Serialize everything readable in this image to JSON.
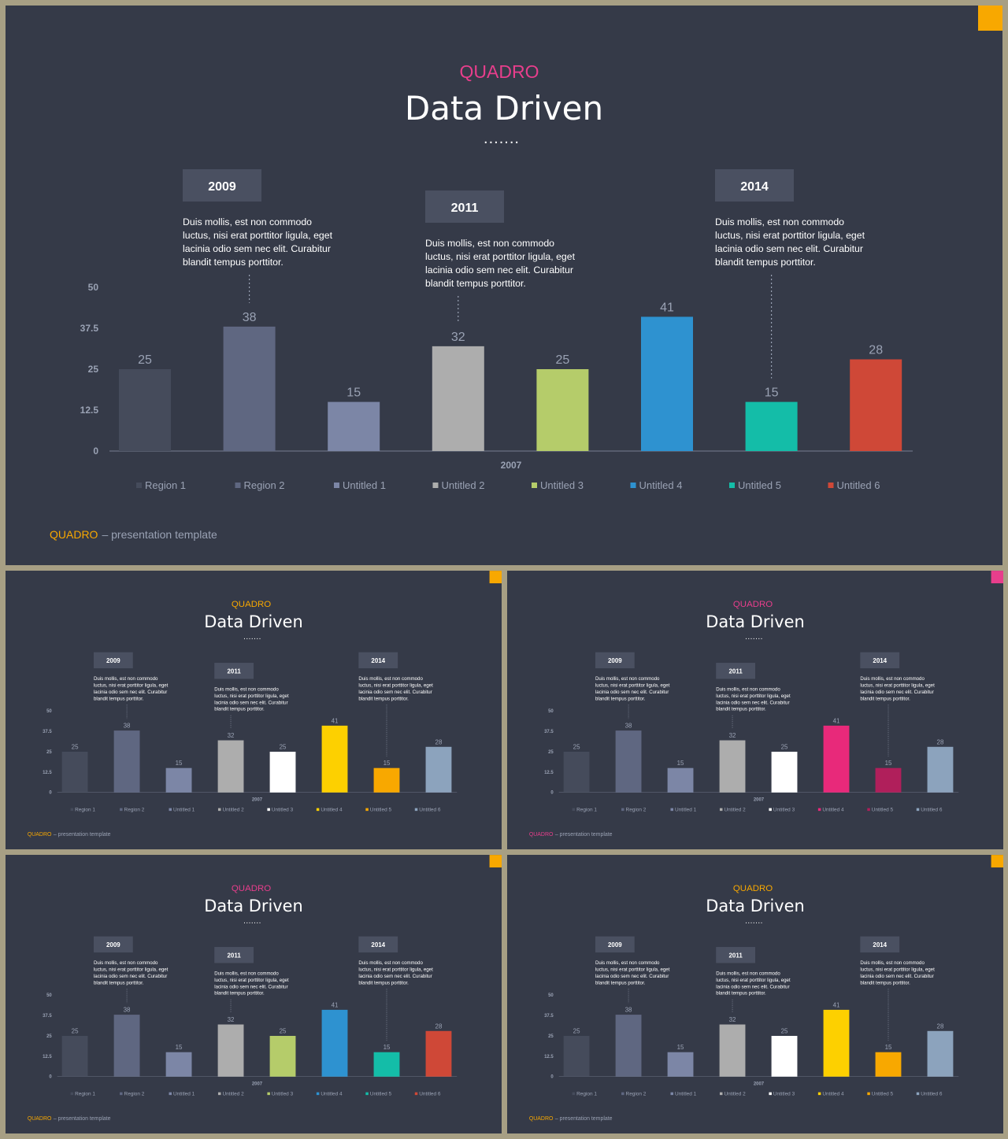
{
  "colors": {
    "frame": "#a79f84",
    "slide_bg": "#353a48",
    "text_light": "#ffffff",
    "text_muted": "#9aa2b4",
    "axis": "#6a7183",
    "label_box": "#4a5061",
    "accent_orange": "#f8a800",
    "accent_pink": "#e83e8c"
  },
  "slides": [
    {
      "brand": "QUADRO",
      "brand_color": "#e83e8c",
      "title": "Data Driven",
      "dots": ".......",
      "corner_color": "#f8a800",
      "footer_brand": "QUADRO",
      "footer_brand_color": "#f8a800",
      "footer_text": "– presentation template",
      "callouts": [
        {
          "year": "2009",
          "text": [
            "Duis mollis, est non commodo",
            "luctus, nisi erat porttitor ligula, eget",
            "lacinia odio sem nec elit. Curabitur",
            "blandit tempus porttitor."
          ],
          "bar": 1
        },
        {
          "year": "2011",
          "text": [
            "Duis mollis, est non commodo",
            "luctus, nisi erat porttitor ligula, eget",
            "lacinia odio sem nec elit. Curabitur",
            "blandit tempus porttitor."
          ],
          "bar": 3
        },
        {
          "year": "2014",
          "text": [
            "Duis mollis, est non commodo",
            "luctus, nisi erat porttitor ligula, eget",
            "lacinia odio sem nec elit. Curabitur",
            "blandit tempus porttitor."
          ],
          "bar": 6
        }
      ],
      "bar_colors": [
        "#454b5b",
        "#5f6781",
        "#7c86a6",
        "#adadad",
        "#b5cc6a",
        "#2e92d0",
        "#14bda8",
        "#cf4837"
      ]
    },
    {
      "brand": "QUADRO",
      "brand_color": "#f8a800",
      "title": "Data Driven",
      "dots": ".......",
      "corner_color": "#f8a800",
      "footer_brand": "QUADRO",
      "footer_brand_color": "#f8a800",
      "footer_text": "– presentation template",
      "callouts": [
        {
          "year": "2009",
          "text": [
            "Duis mollis, est non commodo",
            "luctus, nisi erat porttitor ligula, eget",
            "lacinia odio sem nec elit. Curabitur",
            "blandit tempus porttitor."
          ],
          "bar": 1
        },
        {
          "year": "2011",
          "text": [
            "Duis mollis, est non commodo",
            "luctus, nisi erat porttitor ligula, eget",
            "lacinia odio sem nec elit. Curabitur",
            "blandit tempus porttitor."
          ],
          "bar": 3
        },
        {
          "year": "2014",
          "text": [
            "Duis mollis, est non commodo",
            "luctus, nisi erat porttitor ligula, eget",
            "lacinia odio sem nec elit. Curabitur",
            "blandit tempus porttitor."
          ],
          "bar": 6
        }
      ],
      "bar_colors": [
        "#454b5b",
        "#5f6781",
        "#7c86a6",
        "#adadad",
        "#ffffff",
        "#fdd000",
        "#f8a800",
        "#8ca3bd"
      ]
    },
    {
      "brand": "QUADRO",
      "brand_color": "#e83e8c",
      "title": "Data Driven",
      "dots": ".......",
      "corner_color": "#e83e8c",
      "footer_brand": "QUADRO",
      "footer_brand_color": "#e83e8c",
      "footer_text": "– presentation template",
      "callouts": [
        {
          "year": "2009",
          "text": [
            "Duis mollis, est non commodo",
            "luctus, nisi erat porttitor ligula, eget",
            "lacinia odio sem nec elit. Curabitur",
            "blandit tempus porttitor."
          ],
          "bar": 1
        },
        {
          "year": "2011",
          "text": [
            "Duis mollis, est non commodo",
            "luctus, nisi erat porttitor ligula, eget",
            "lacinia odio sem nec elit. Curabitur",
            "blandit tempus porttitor."
          ],
          "bar": 3
        },
        {
          "year": "2014",
          "text": [
            "Duis mollis, est non commodo",
            "luctus, nisi erat porttitor ligula, eget",
            "lacinia odio sem nec elit. Curabitur",
            "blandit tempus porttitor."
          ],
          "bar": 6
        }
      ],
      "bar_colors": [
        "#454b5b",
        "#5f6781",
        "#7c86a6",
        "#adadad",
        "#ffffff",
        "#e8297a",
        "#b01f5b",
        "#8ca3bd"
      ]
    },
    {
      "brand": "QUADRO",
      "brand_color": "#e83e8c",
      "title": "Data Driven",
      "dots": ".......",
      "corner_color": "#f8a800",
      "footer_brand": "QUADRO",
      "footer_brand_color": "#f8a800",
      "footer_text": "– presentation template",
      "callouts": [
        {
          "year": "2009",
          "text": [
            "Duis mollis, est non commodo",
            "luctus, nisi erat porttitor ligula, eget",
            "lacinia odio sem nec elit. Curabitur",
            "blandit tempus porttitor."
          ],
          "bar": 1
        },
        {
          "year": "2011",
          "text": [
            "Duis mollis, est non commodo",
            "luctus, nisi erat porttitor ligula, eget",
            "lacinia odio sem nec elit. Curabitur",
            "blandit tempus porttitor."
          ],
          "bar": 3
        },
        {
          "year": "2014",
          "text": [
            "Duis mollis, est non commodo",
            "luctus, nisi erat porttitor ligula, eget",
            "lacinia odio sem nec elit. Curabitur",
            "blandit tempus porttitor."
          ],
          "bar": 6
        }
      ],
      "bar_colors": [
        "#454b5b",
        "#5f6781",
        "#7c86a6",
        "#adadad",
        "#b5cc6a",
        "#2e92d0",
        "#14bda8",
        "#cf4837"
      ]
    },
    {
      "brand": "QUADRO",
      "brand_color": "#f8a800",
      "title": "Data Driven",
      "dots": ".......",
      "corner_color": "#f8a800",
      "footer_brand": "QUADRO",
      "footer_brand_color": "#f8a800",
      "footer_text": "– presentation template",
      "callouts": [
        {
          "year": "2009",
          "text": [
            "Duis mollis, est non commodo",
            "luctus, nisi erat porttitor ligula, eget",
            "lacinia odio sem nec elit. Curabitur",
            "blandit tempus porttitor."
          ],
          "bar": 1
        },
        {
          "year": "2011",
          "text": [
            "Duis mollis, est non commodo",
            "luctus, nisi erat porttitor ligula, eget",
            "lacinia odio sem nec elit. Curabitur",
            "blandit tempus porttitor."
          ],
          "bar": 3
        },
        {
          "year": "2014",
          "text": [
            "Duis mollis, est non commodo",
            "luctus, nisi erat porttitor ligula, eget",
            "lacinia odio sem nec elit. Curabitur",
            "blandit tempus porttitor."
          ],
          "bar": 6
        }
      ],
      "bar_colors": [
        "#454b5b",
        "#5f6781",
        "#7c86a6",
        "#adadad",
        "#ffffff",
        "#fdd000",
        "#f8a800",
        "#8ca3bd"
      ]
    }
  ],
  "chart_data": [
    {
      "type": "bar",
      "title": "",
      "categories": [
        "Region 1",
        "Region 2",
        "Untitled 1",
        "Untitled 2",
        "Untitled 3",
        "Untitled 4",
        "Untitled 5",
        "Untitled 6"
      ],
      "values": [
        25,
        38,
        15,
        32,
        25,
        41,
        15,
        28
      ],
      "xlabel": "2007",
      "ylabel": "",
      "ylim": [
        0,
        50
      ],
      "yticks": [
        "0",
        "12.5",
        "25",
        "37.5",
        "50"
      ],
      "legend": "bottom",
      "grid": false
    },
    {
      "type": "bar",
      "title": "",
      "categories": [
        "Region 1",
        "Region 2",
        "Untitled 1",
        "Untitled 2",
        "Untitled 3",
        "Untitled 4",
        "Untitled 5",
        "Untitled 6"
      ],
      "values": [
        25,
        38,
        15,
        32,
        25,
        41,
        15,
        28
      ],
      "xlabel": "2007",
      "ylabel": "",
      "ylim": [
        0,
        50
      ],
      "yticks": [
        "0",
        "12.5",
        "25",
        "37.5",
        "50"
      ],
      "legend": "bottom",
      "grid": false
    },
    {
      "type": "bar",
      "title": "",
      "categories": [
        "Region 1",
        "Region 2",
        "Untitled 1",
        "Untitled 2",
        "Untitled 3",
        "Untitled 4",
        "Untitled 5",
        "Untitled 6"
      ],
      "values": [
        25,
        38,
        15,
        32,
        25,
        41,
        15,
        28
      ],
      "xlabel": "2007",
      "ylabel": "",
      "ylim": [
        0,
        50
      ],
      "yticks": [
        "0",
        "12.5",
        "25",
        "37.5",
        "50"
      ],
      "legend": "bottom",
      "grid": false
    },
    {
      "type": "bar",
      "title": "",
      "categories": [
        "Region 1",
        "Region 2",
        "Untitled 1",
        "Untitled 2",
        "Untitled 3",
        "Untitled 4",
        "Untitled 5",
        "Untitled 6"
      ],
      "values": [
        25,
        38,
        15,
        32,
        25,
        41,
        15,
        28
      ],
      "xlabel": "2007",
      "ylabel": "",
      "ylim": [
        0,
        50
      ],
      "yticks": [
        "0",
        "12.5",
        "25",
        "37.5",
        "50"
      ],
      "legend": "bottom",
      "grid": false
    },
    {
      "type": "bar",
      "title": "",
      "categories": [
        "Region 1",
        "Region 2",
        "Untitled 1",
        "Untitled 2",
        "Untitled 3",
        "Untitled 4",
        "Untitled 5",
        "Untitled 6"
      ],
      "values": [
        25,
        38,
        15,
        32,
        25,
        41,
        15,
        28
      ],
      "xlabel": "2007",
      "ylabel": "",
      "ylim": [
        0,
        50
      ],
      "yticks": [
        "0",
        "12.5",
        "25",
        "37.5",
        "50"
      ],
      "legend": "bottom",
      "grid": false
    }
  ]
}
